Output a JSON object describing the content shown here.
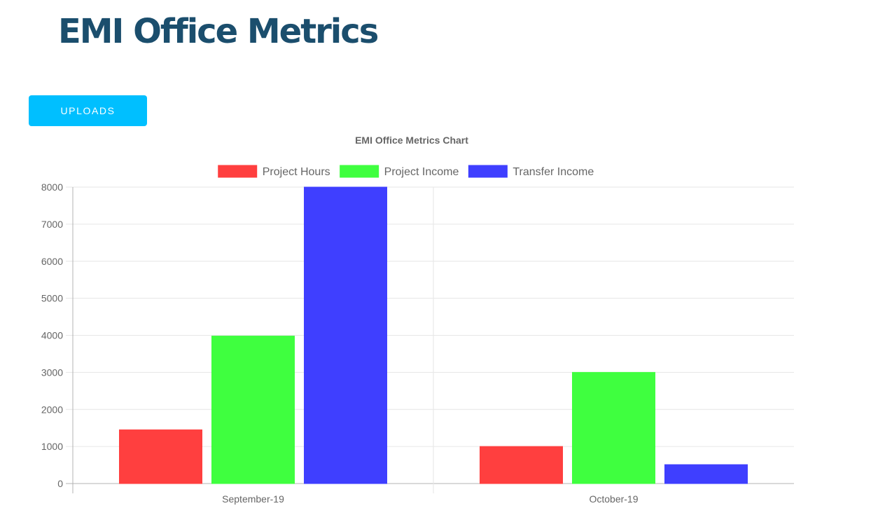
{
  "header": {
    "title": "EMI Office Metrics"
  },
  "toolbar": {
    "uploads_label": "UPLOADS"
  },
  "colors": {
    "title": "#1b4e6d",
    "button": "#00bfff",
    "project_hours": "#ff3f3f",
    "project_income": "#3fff3f",
    "transfer_income": "#3f3fff"
  },
  "chart_data": {
    "type": "bar",
    "title": "EMI Office Metrics Chart",
    "categories": [
      "September-19",
      "October-19"
    ],
    "series": [
      {
        "name": "Project Hours",
        "values": [
          1450,
          1000
        ],
        "color": "#ff3f3f"
      },
      {
        "name": "Project Income",
        "values": [
          3980,
          3000
        ],
        "color": "#3fff3f"
      },
      {
        "name": "Transfer Income",
        "values": [
          8000,
          510
        ],
        "color": "#3f3fff"
      }
    ],
    "ylim": [
      0,
      8000
    ],
    "yticks": [
      0,
      1000,
      2000,
      3000,
      4000,
      5000,
      6000,
      7000,
      8000
    ],
    "grid": true,
    "legend": "top-center",
    "xlabel": "",
    "ylabel": ""
  }
}
